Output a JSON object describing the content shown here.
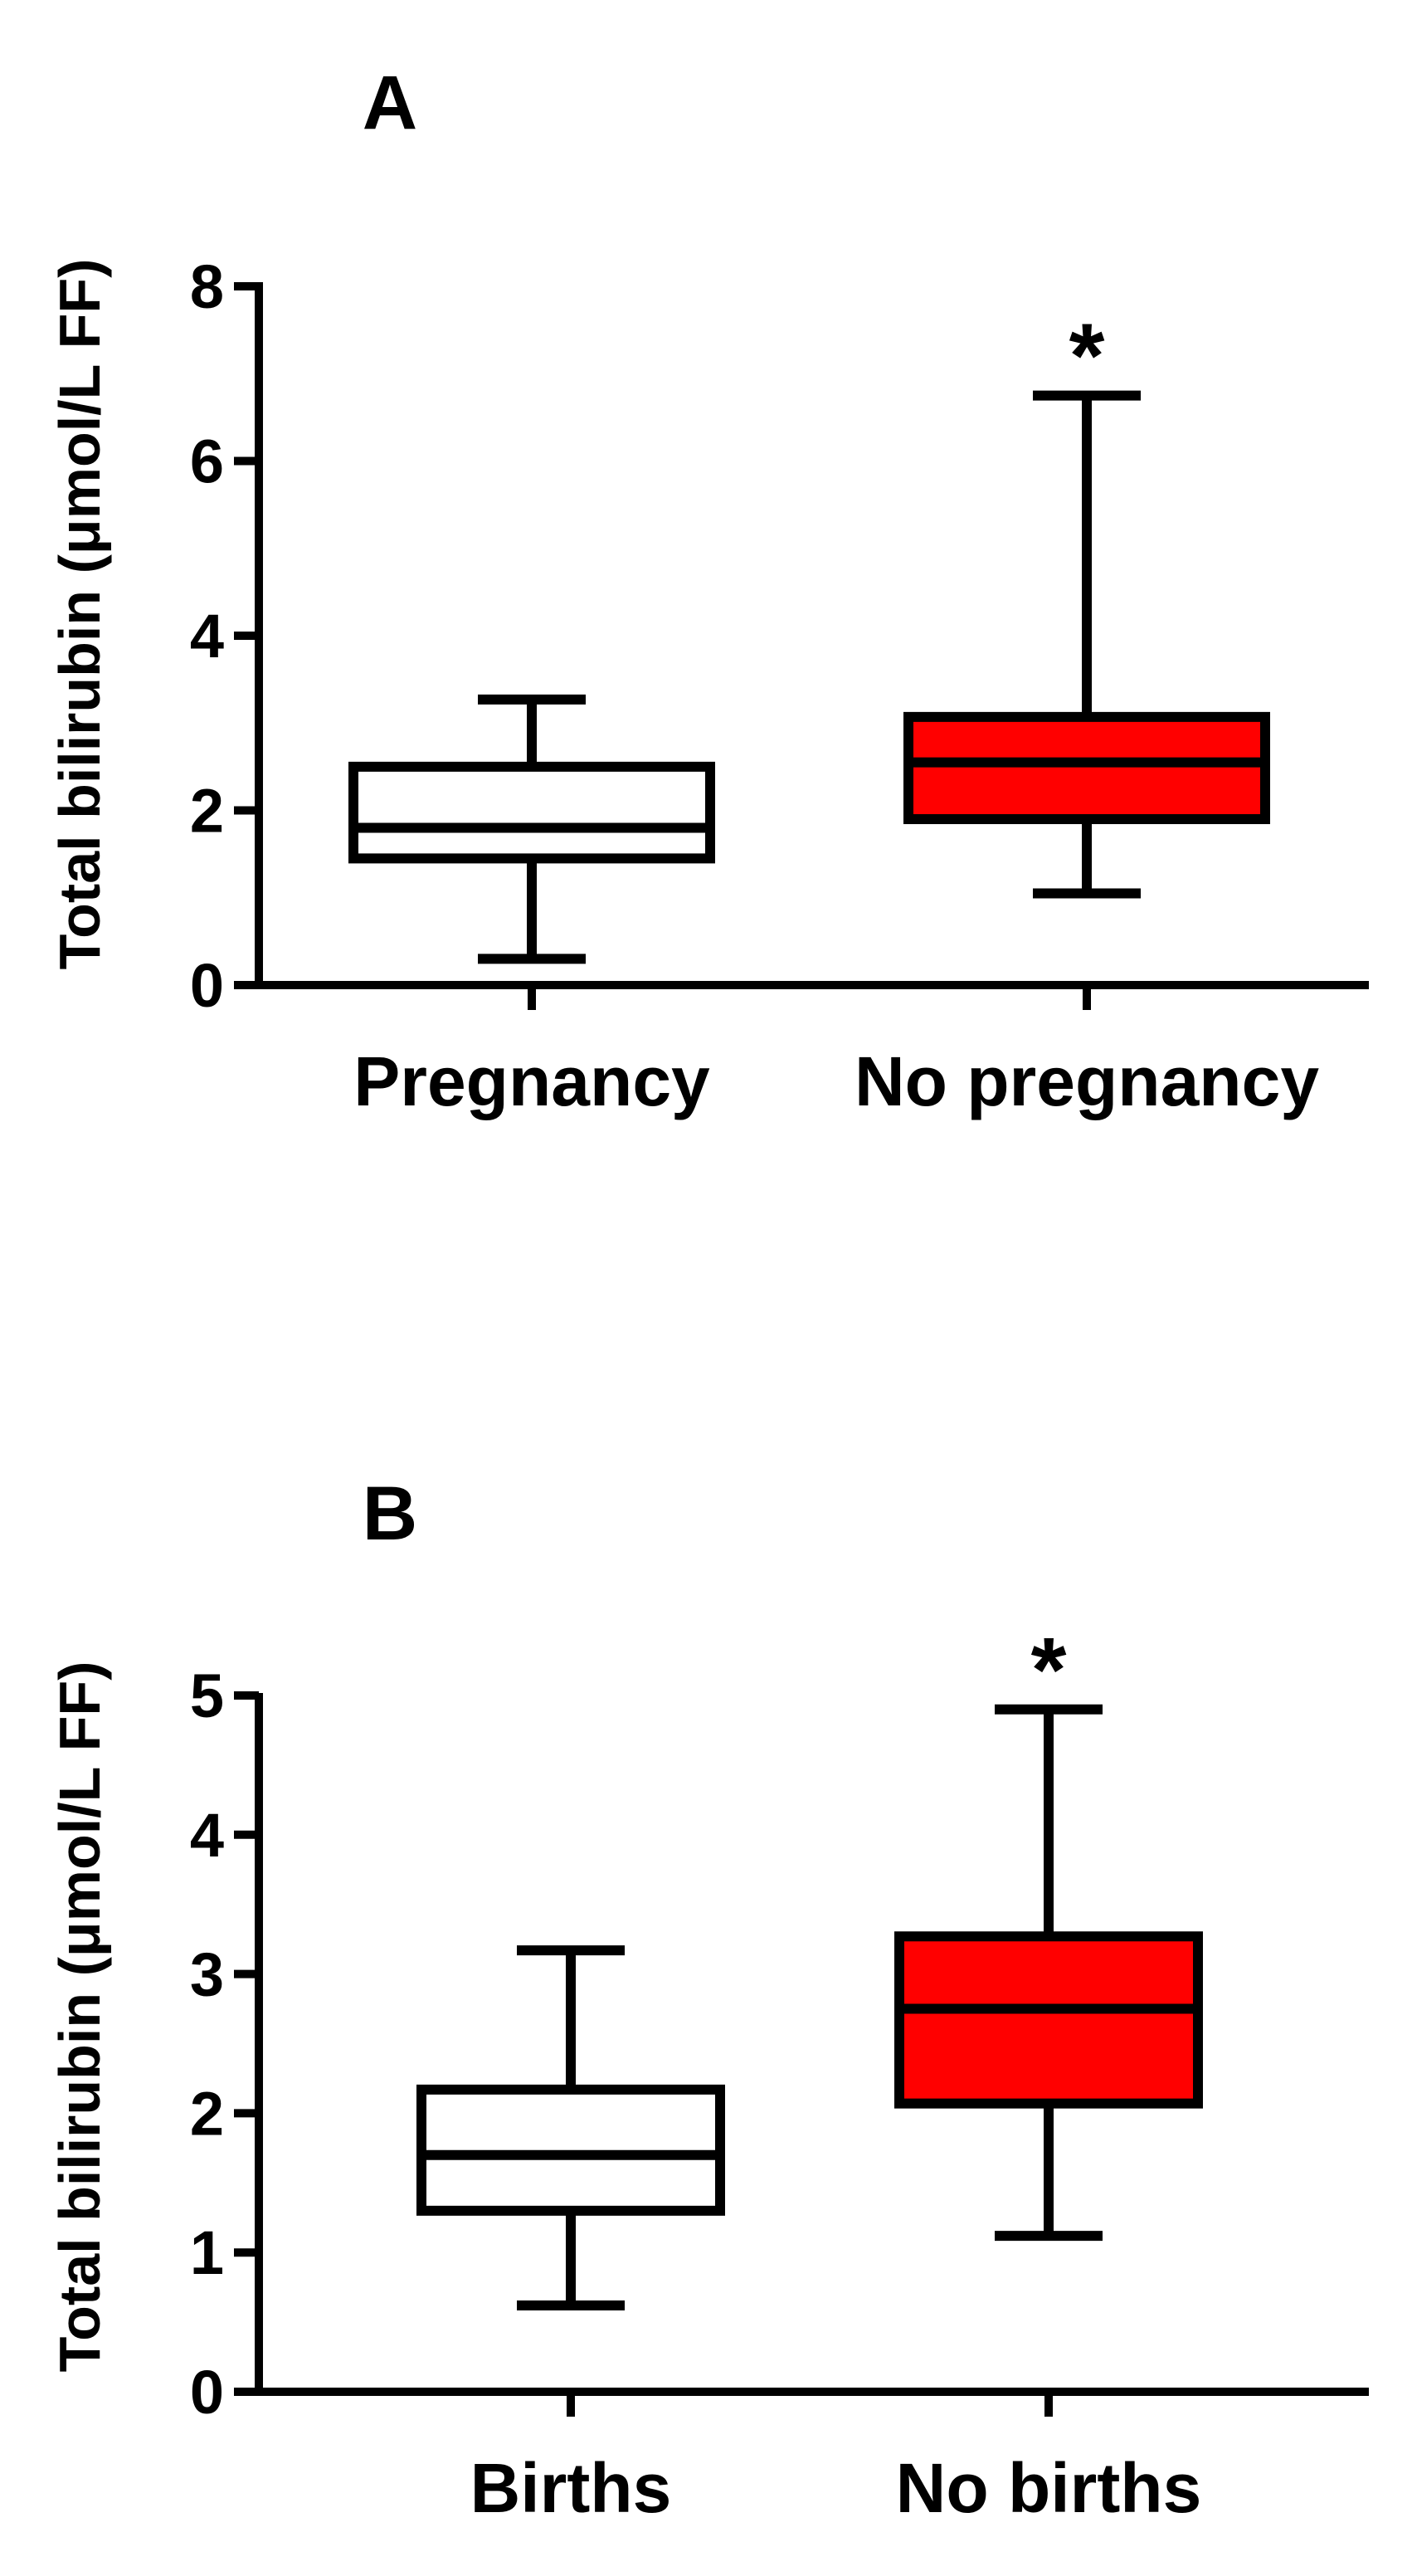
{
  "chart_data": [
    {
      "type": "box",
      "panel_label": "A",
      "ylabel": "Total bilirubin (μmol/L FF)",
      "xlabel": "",
      "ylim": [
        0,
        8
      ],
      "yticks": [
        0,
        2,
        4,
        6,
        8
      ],
      "ytick_labels": [
        "0",
        "2",
        "4",
        "6",
        "8"
      ],
      "categories": [
        "Pregnancy",
        "No pregnancy"
      ],
      "boxes": [
        {
          "name": "Pregnancy",
          "min": 0.3,
          "q1": 1.45,
          "median": 1.8,
          "q3": 2.5,
          "max": 3.27,
          "color": "#ffffff",
          "marker": ""
        },
        {
          "name": "No pregnancy",
          "min": 1.05,
          "q1": 1.9,
          "median": 2.55,
          "q3": 3.07,
          "max": 6.75,
          "color": "#ff0000",
          "marker": "*"
        }
      ]
    },
    {
      "type": "box",
      "panel_label": "B",
      "ylabel": "Total bilirubin (μmol/L FF)",
      "xlabel": "",
      "ylim": [
        0,
        5
      ],
      "yticks": [
        0,
        1,
        2,
        3,
        4,
        5
      ],
      "ytick_labels": [
        "0",
        "1",
        "2",
        "3",
        "4",
        "5"
      ],
      "categories": [
        "Births",
        "No births"
      ],
      "boxes": [
        {
          "name": "Births",
          "min": 0.62,
          "q1": 1.3,
          "median": 1.7,
          "q3": 2.17,
          "max": 3.17,
          "color": "#ffffff",
          "marker": ""
        },
        {
          "name": "No births",
          "min": 1.12,
          "q1": 2.07,
          "median": 2.75,
          "q3": 3.27,
          "max": 4.9,
          "color": "#ff0000",
          "marker": "*"
        }
      ]
    }
  ]
}
